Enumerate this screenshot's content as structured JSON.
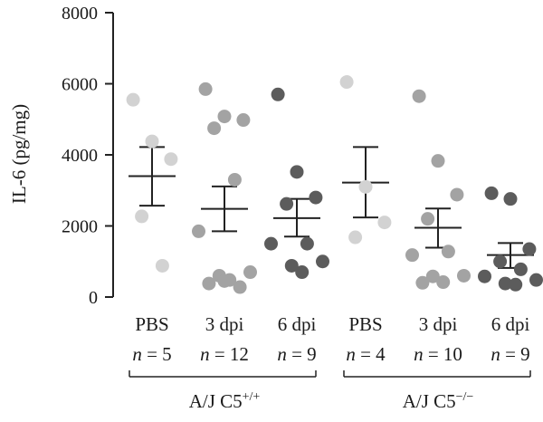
{
  "chart_data": {
    "type": "scatter",
    "ylabel": "IL-6 (pg/mg)",
    "ylim": [
      0,
      8000
    ],
    "yticks": [
      "0",
      "2000",
      "4000",
      "6000",
      "8000"
    ],
    "categories": [
      {
        "label": "PBS",
        "n_label": "n = 5",
        "color": "#d2d2d2",
        "values": [
          5550,
          4380,
          3880,
          2270,
          880
        ],
        "mean": 3400,
        "sem_low": 2570,
        "sem_high": 4220
      },
      {
        "label": "3 dpi",
        "n_label": "n = 12",
        "color": "#a3a3a3",
        "values": [
          5850,
          5080,
          4980,
          4750,
          3300,
          1850,
          700,
          600,
          480,
          380,
          280,
          450
        ],
        "mean": 2480,
        "sem_low": 1850,
        "sem_high": 3110
      },
      {
        "label": "6 dpi",
        "n_label": "n = 9",
        "color": "#5c5c5c",
        "values": [
          5700,
          3520,
          2800,
          2620,
          1500,
          1500,
          1000,
          880,
          700
        ],
        "mean": 2220,
        "sem_low": 1700,
        "sem_high": 2760
      },
      {
        "label": "PBS",
        "n_label": "n = 4",
        "color": "#d2d2d2",
        "values": [
          6050,
          3100,
          2100,
          1680
        ],
        "mean": 3220,
        "sem_low": 2240,
        "sem_high": 4220
      },
      {
        "label": "3 dpi",
        "n_label": "n = 10",
        "color": "#a3a3a3",
        "values": [
          5650,
          3830,
          2880,
          2200,
          1280,
          1180,
          600,
          580,
          420,
          400
        ],
        "mean": 1950,
        "sem_low": 1390,
        "sem_high": 2490
      },
      {
        "label": "6 dpi",
        "n_label": "n = 9",
        "color": "#5c5c5c",
        "values": [
          2920,
          2760,
          1350,
          1000,
          780,
          580,
          480,
          380,
          350
        ],
        "mean": 1180,
        "sem_low": 820,
        "sem_high": 1520
      }
    ],
    "groups": [
      {
        "label": "A/J C5",
        "superscript": "+/+"
      },
      {
        "label": "A/J C5",
        "superscript": "−/−"
      }
    ]
  }
}
